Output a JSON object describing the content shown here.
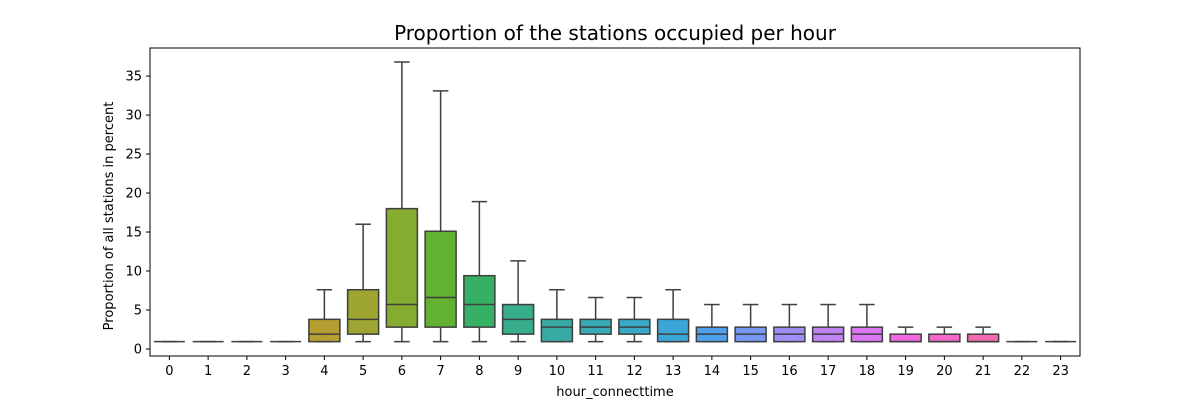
{
  "chart_data": {
    "type": "box",
    "title": "Proportion of the stations occupied per hour",
    "xlabel": "hour_connecttime",
    "ylabel": "Proportion of all stations in percent",
    "categories": [
      "0",
      "1",
      "2",
      "3",
      "4",
      "5",
      "6",
      "7",
      "8",
      "9",
      "10",
      "11",
      "12",
      "13",
      "14",
      "15",
      "16",
      "17",
      "18",
      "19",
      "20",
      "21",
      "22",
      "23"
    ],
    "boxes": [
      {
        "min": 0.94,
        "q1": 0.94,
        "median": 0.94,
        "q3": 0.94,
        "max": 0.94
      },
      {
        "min": 0.94,
        "q1": 0.94,
        "median": 0.94,
        "q3": 0.94,
        "max": 0.94
      },
      {
        "min": 0.94,
        "q1": 0.94,
        "median": 0.94,
        "q3": 0.94,
        "max": 0.94
      },
      {
        "min": 0.94,
        "q1": 0.94,
        "median": 0.94,
        "q3": 0.94,
        "max": 0.94
      },
      {
        "min": 0.94,
        "q1": 0.94,
        "median": 1.9,
        "q3": 3.8,
        "max": 7.6
      },
      {
        "min": 0.94,
        "q1": 1.9,
        "median": 3.8,
        "q3": 7.6,
        "max": 16.0
      },
      {
        "min": 0.94,
        "q1": 2.8,
        "median": 5.7,
        "q3": 18.0,
        "max": 36.8
      },
      {
        "min": 0.94,
        "q1": 2.8,
        "median": 6.6,
        "q3": 15.1,
        "max": 33.1
      },
      {
        "min": 0.94,
        "q1": 2.8,
        "median": 5.7,
        "q3": 9.4,
        "max": 18.9
      },
      {
        "min": 0.94,
        "q1": 1.9,
        "median": 3.8,
        "q3": 5.7,
        "max": 11.3
      },
      {
        "min": 0.94,
        "q1": 0.94,
        "median": 2.8,
        "q3": 3.8,
        "max": 7.6
      },
      {
        "min": 0.94,
        "q1": 1.9,
        "median": 2.8,
        "q3": 3.8,
        "max": 6.6
      },
      {
        "min": 0.94,
        "q1": 1.9,
        "median": 2.8,
        "q3": 3.8,
        "max": 6.6
      },
      {
        "min": 0.94,
        "q1": 0.94,
        "median": 1.9,
        "q3": 3.8,
        "max": 7.6
      },
      {
        "min": 0.94,
        "q1": 0.94,
        "median": 1.9,
        "q3": 2.8,
        "max": 5.7
      },
      {
        "min": 0.94,
        "q1": 0.94,
        "median": 1.9,
        "q3": 2.8,
        "max": 5.7
      },
      {
        "min": 0.94,
        "q1": 0.94,
        "median": 1.9,
        "q3": 2.8,
        "max": 5.7
      },
      {
        "min": 0.94,
        "q1": 0.94,
        "median": 1.9,
        "q3": 2.8,
        "max": 5.7
      },
      {
        "min": 0.94,
        "q1": 0.94,
        "median": 1.9,
        "q3": 2.8,
        "max": 5.7
      },
      {
        "min": 0.94,
        "q1": 0.94,
        "median": 0.94,
        "q3": 1.9,
        "max": 2.8
      },
      {
        "min": 0.94,
        "q1": 0.94,
        "median": 0.94,
        "q3": 1.9,
        "max": 2.8
      },
      {
        "min": 0.94,
        "q1": 0.94,
        "median": 0.94,
        "q3": 1.9,
        "max": 2.8
      },
      {
        "min": 0.94,
        "q1": 0.94,
        "median": 0.94,
        "q3": 0.94,
        "max": 0.94
      },
      {
        "min": 0.94,
        "q1": 0.94,
        "median": 0.94,
        "q3": 0.94,
        "max": 0.94
      }
    ],
    "colors": [
      "#f77189",
      "#f7754f",
      "#dd8a32",
      "#c39532",
      "#ae9d31",
      "#97a431",
      "#77ab31",
      "#33b03b",
      "#35ac7a",
      "#36ada4",
      "#37abb8",
      "#39a7d0",
      "#41a0f1",
      "#6e9bf4",
      "#a38cf4",
      "#cc7af4",
      "#f565cc",
      "#f66bad"
    ],
    "box_colors": [
      "#f77189",
      "#f7754f",
      "#e48a32",
      "#cc9632",
      "#b59f31",
      "#9ea631",
      "#85ab31",
      "#62b131",
      "#35b065",
      "#36ad8b",
      "#37aba3",
      "#38aab6",
      "#39a8c6",
      "#3ba5d6",
      "#4ea0ea",
      "#7898f3",
      "#9e8ff4",
      "#bf83f4",
      "#db76f4",
      "#f367e4",
      "#f567c8",
      "#f56bb0",
      "#f66f9c",
      "#f77189"
    ],
    "yticks": [
      0,
      5,
      10,
      15,
      20,
      25,
      30,
      35
    ],
    "ylim": [
      -0.9,
      38.6
    ],
    "grid": false
  }
}
